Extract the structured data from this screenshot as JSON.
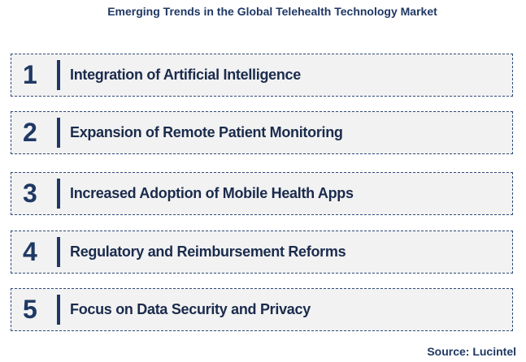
{
  "header": {
    "title": "Emerging Trends in the Global Telehealth Technology Market"
  },
  "items": [
    {
      "number": "1",
      "label": "Integration of Artificial Intelligence"
    },
    {
      "number": "2",
      "label": "Expansion of Remote Patient Monitoring"
    },
    {
      "number": "3",
      "label": "Increased Adoption of Mobile Health Apps"
    },
    {
      "number": "4",
      "label": "Regulatory and Reimbursement Reforms"
    },
    {
      "number": "5",
      "label": "Focus on Data Security and Privacy"
    }
  ],
  "footer": {
    "source": "Source: Lucintel"
  }
}
